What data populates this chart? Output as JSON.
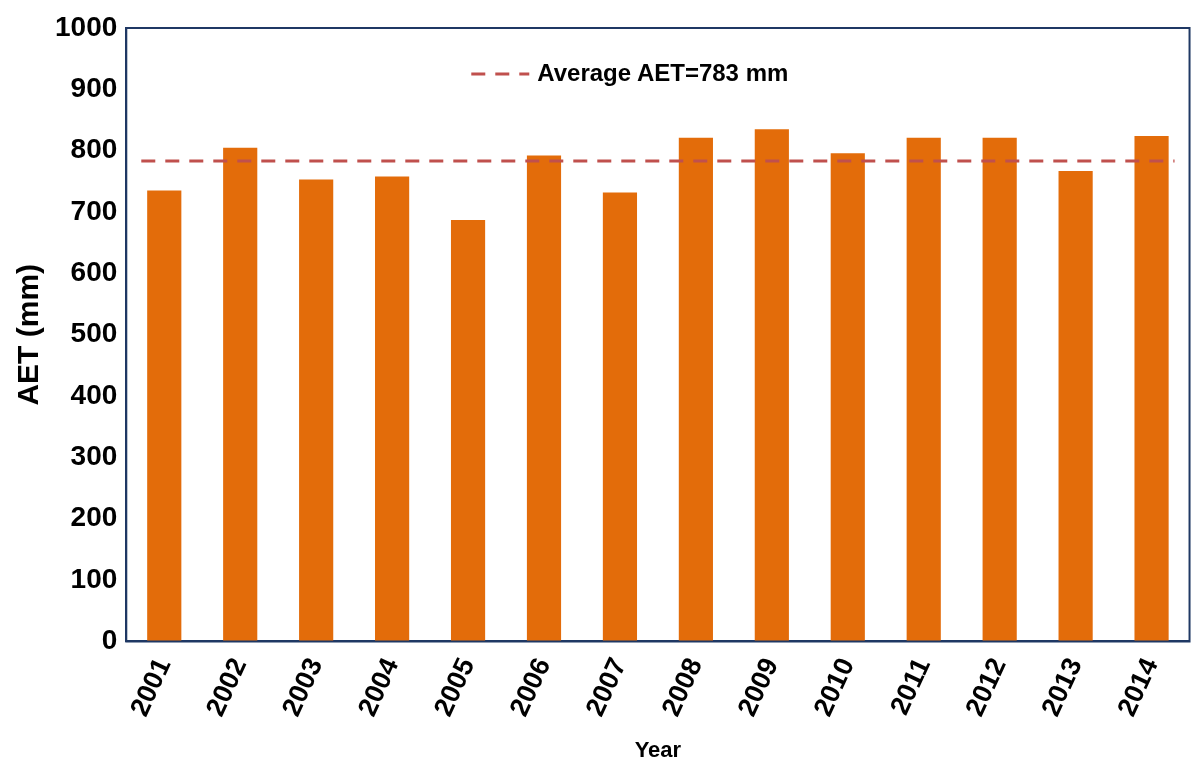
{
  "chart_data": {
    "type": "bar",
    "xlabel": "Year",
    "ylabel": "AET (mm)",
    "categories": [
      "2001",
      "2002",
      "2003",
      "2004",
      "2005",
      "2006",
      "2007",
      "2008",
      "2009",
      "2010",
      "2011",
      "2012",
      "2013",
      "2014"
    ],
    "values": [
      735,
      805,
      753,
      758,
      687,
      792,
      732,
      821,
      835,
      796,
      821,
      821,
      767,
      824
    ],
    "color": "#e36c0a",
    "ylim": [
      0,
      1000
    ],
    "yticks": [
      0,
      100,
      200,
      300,
      400,
      500,
      600,
      700,
      800,
      900,
      1000
    ],
    "grid": false,
    "ref_lines": [
      {
        "axis": "y",
        "value": 783,
        "label": "Average AET=783 mm",
        "color": "#c0504d",
        "line_style": "dashed"
      }
    ]
  }
}
